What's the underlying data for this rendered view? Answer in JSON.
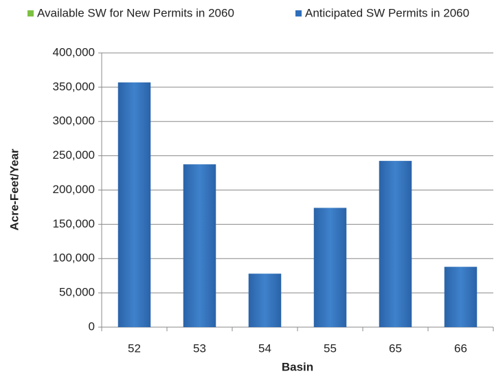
{
  "chart_data": {
    "type": "bar",
    "categories": [
      "52",
      "53",
      "54",
      "55",
      "65",
      "66"
    ],
    "series": [
      {
        "name": "Available SW for New Permits in 2060",
        "color": "#7dc142",
        "values": [
          0,
          0,
          0,
          0,
          0,
          0
        ]
      },
      {
        "name": "Anticipated SW Permits in 2060",
        "color": "#2f6fba",
        "values": [
          357000,
          237500,
          78000,
          174000,
          242500,
          88000
        ]
      }
    ],
    "xlabel": "Basin",
    "ylabel": "Acre-Feet/Year",
    "ylim": [
      0,
      400000
    ],
    "yticks": [
      0,
      {
        "value": 50000,
        "label": "50,000"
      },
      {
        "value": 100000,
        "label": "100,000"
      },
      {
        "value": 150000,
        "label": "150,000"
      },
      {
        "value": 200000,
        "label": "200,000"
      },
      {
        "value": 250000,
        "label": "250,000"
      },
      {
        "value": 300000,
        "label": "300,000"
      },
      {
        "value": 350000,
        "label": "350,000"
      },
      {
        "value": 400000,
        "label": "400,000"
      }
    ],
    "grid": true,
    "legend": "top"
  }
}
